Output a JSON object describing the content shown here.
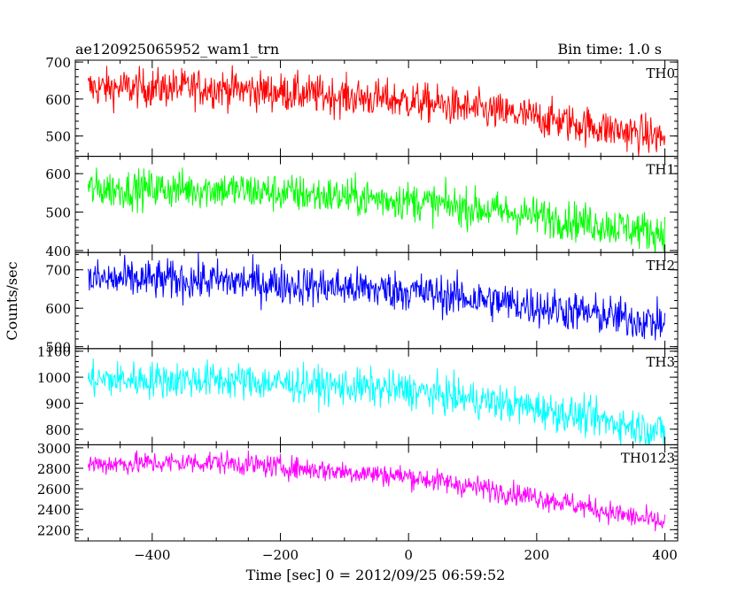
{
  "title": "ae120925065952_wam1_trn",
  "bin_label": "Bin time: 1.0 s",
  "ylabel": "Counts/sec",
  "xlabel": "Time [sec] 0 = 2012/09/25 06:59:52",
  "chart_data": {
    "type": "line",
    "title": "ae120925065952_wam1_trn",
    "xlabel": "Time [sec] 0 = 2012/09/25 06:59:52",
    "ylabel": "Counts/sec",
    "xlim": [
      -520,
      420
    ],
    "x_ticks": [
      -400,
      -200,
      0,
      200,
      400
    ],
    "x_tick_labels": [
      "−400",
      "−200",
      "0",
      "200",
      "400"
    ],
    "bin_time_s": 1.0,
    "time_range": [
      -500,
      400
    ],
    "panels": [
      {
        "name": "TH0",
        "color": "#ff0000",
        "ylim": [
          445,
          705
        ],
        "y_ticks": [
          500,
          600,
          700
        ],
        "trend": [
          {
            "x": -500,
            "y": 630
          },
          {
            "x": -300,
            "y": 630
          },
          {
            "x": 0,
            "y": 595
          },
          {
            "x": 200,
            "y": 550
          },
          {
            "x": 400,
            "y": 495
          }
        ],
        "noise": 26
      },
      {
        "name": "TH1",
        "color": "#00ff00",
        "ylim": [
          395,
          645
        ],
        "y_ticks": [
          400,
          500,
          600
        ],
        "trend": [
          {
            "x": -500,
            "y": 560
          },
          {
            "x": -300,
            "y": 560
          },
          {
            "x": 0,
            "y": 530
          },
          {
            "x": 200,
            "y": 490
          },
          {
            "x": 400,
            "y": 445
          }
        ],
        "noise": 25
      },
      {
        "name": "TH2",
        "color": "#0000ff",
        "ylim": [
          495,
          745
        ],
        "y_ticks": [
          500,
          600,
          700
        ],
        "trend": [
          {
            "x": -500,
            "y": 675
          },
          {
            "x": -300,
            "y": 672
          },
          {
            "x": 0,
            "y": 645
          },
          {
            "x": 200,
            "y": 605
          },
          {
            "x": 400,
            "y": 560
          }
        ],
        "noise": 26
      },
      {
        "name": "TH3",
        "color": "#00ffff",
        "ylim": [
          740,
          1110
        ],
        "y_ticks": [
          800,
          900,
          1000,
          1100
        ],
        "trend": [
          {
            "x": -500,
            "y": 990
          },
          {
            "x": -300,
            "y": 990
          },
          {
            "x": 0,
            "y": 950
          },
          {
            "x": 200,
            "y": 880
          },
          {
            "x": 400,
            "y": 790
          }
        ],
        "noise": 35
      },
      {
        "name": "TH0123",
        "color": "#ff00ff",
        "ylim": [
          2090,
          3030
        ],
        "y_ticks": [
          2200,
          2400,
          2600,
          2800,
          3000
        ],
        "trend": [
          {
            "x": -500,
            "y": 2840
          },
          {
            "x": -300,
            "y": 2860
          },
          {
            "x": 0,
            "y": 2720
          },
          {
            "x": 200,
            "y": 2520
          },
          {
            "x": 400,
            "y": 2260
          }
        ],
        "noise": 55
      }
    ]
  }
}
